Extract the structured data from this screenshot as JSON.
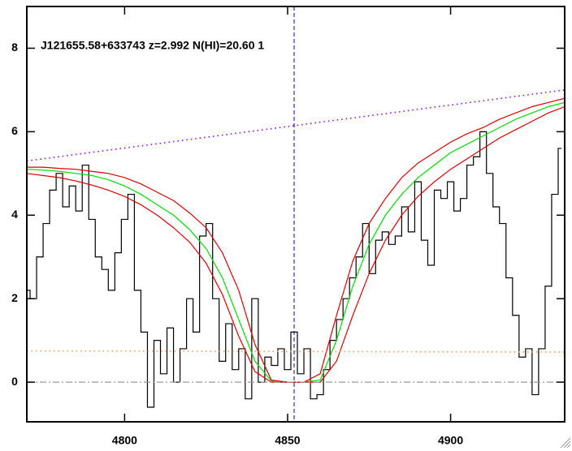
{
  "chart_data": {
    "type": "line",
    "title": "J121655.58+633743 z=2.992 N(HI)=20.60 1",
    "xlim": [
      4770,
      4935
    ],
    "ylim": [
      -0.95,
      9
    ],
    "xticks": [
      4800,
      4850,
      4900
    ],
    "yticks": [
      0,
      2,
      4,
      6,
      8
    ],
    "vline": 4852,
    "vline_color": "#0000cc",
    "series": [
      {
        "name": "flux",
        "color": "#000000",
        "style": "step",
        "x": [
          4770,
          4772,
          4774,
          4776,
          4778,
          4780,
          4782,
          4784,
          4786,
          4788,
          4790,
          4792,
          4794,
          4796,
          4798,
          4800,
          4802,
          4804,
          4806,
          4808,
          4810,
          4812,
          4814,
          4816,
          4818,
          4820,
          4822,
          4824,
          4826,
          4828,
          4830,
          4832,
          4834,
          4836,
          4838,
          4840,
          4842,
          4844,
          4846,
          4848,
          4850,
          4852,
          4854,
          4856,
          4858,
          4860,
          4862,
          4864,
          4866,
          4868,
          4870,
          4872,
          4874,
          4876,
          4878,
          4880,
          4882,
          4884,
          4886,
          4888,
          4890,
          4892,
          4894,
          4896,
          4898,
          4900,
          4902,
          4904,
          4906,
          4908,
          4910,
          4912,
          4914,
          4916,
          4918,
          4920,
          4922,
          4924,
          4926,
          4928,
          4930,
          4932,
          4934
        ],
        "values": [
          2.2,
          2.0,
          3.0,
          3.8,
          4.6,
          5.0,
          4.2,
          4.7,
          4.1,
          5.2,
          3.9,
          3.0,
          2.7,
          2.2,
          3.1,
          3.9,
          4.5,
          2.2,
          1.2,
          -0.6,
          1.0,
          0.2,
          1.3,
          0.0,
          0.8,
          2.0,
          1.2,
          3.5,
          3.8,
          2.0,
          0.5,
          1.4,
          0.3,
          0.8,
          -0.4,
          2.0,
          0.0,
          0.6,
          0.4,
          0.8,
          0.3,
          1.2,
          0.2,
          0.8,
          -0.4,
          -0.3,
          0.3,
          1.0,
          1.5,
          2.0,
          2.5,
          3.0,
          3.8,
          2.6,
          3.4,
          3.6,
          3.3,
          3.5,
          4.2,
          3.6,
          4.8,
          3.4,
          2.8,
          4.6,
          4.4,
          4.8,
          4.1,
          4.4,
          5.2,
          5.4,
          6.0,
          5.0,
          4.2,
          3.8,
          2.5,
          1.6,
          0.6,
          0.8,
          -0.3,
          0.8,
          2.3,
          4.5,
          5.6
        ]
      },
      {
        "name": "fit",
        "color": "#00dd00",
        "style": "solid",
        "x": [
          4770,
          4775,
          4780,
          4785,
          4790,
          4795,
          4800,
          4805,
          4810,
          4815,
          4820,
          4825,
          4830,
          4835,
          4840,
          4845,
          4850,
          4855,
          4860,
          4865,
          4870,
          4875,
          4880,
          4885,
          4890,
          4895,
          4900,
          4905,
          4910,
          4915,
          4920,
          4925,
          4930,
          4935
        ],
        "values": [
          5.1,
          5.08,
          5.05,
          5.0,
          4.95,
          4.85,
          4.7,
          4.5,
          4.25,
          4.0,
          3.65,
          3.2,
          2.5,
          1.5,
          0.5,
          0.03,
          0,
          0,
          0.05,
          1.0,
          2.3,
          3.3,
          4.0,
          4.5,
          4.9,
          5.2,
          5.5,
          5.7,
          5.9,
          6.1,
          6.3,
          6.45,
          6.6,
          6.7
        ]
      },
      {
        "name": "fit-upper",
        "color": "#dd0000",
        "style": "solid",
        "x": [
          4770,
          4775,
          4780,
          4785,
          4790,
          4795,
          4800,
          4805,
          4810,
          4815,
          4820,
          4825,
          4830,
          4835,
          4840,
          4845,
          4850,
          4855,
          4860,
          4865,
          4870,
          4875,
          4880,
          4885,
          4890,
          4895,
          4900,
          4905,
          4910,
          4915,
          4920,
          4925,
          4930,
          4935
        ],
        "values": [
          5.15,
          5.15,
          5.12,
          5.1,
          5.05,
          5.0,
          4.9,
          4.75,
          4.55,
          4.35,
          4.05,
          3.7,
          3.1,
          2.2,
          0.9,
          0.05,
          0,
          0,
          0.2,
          1.6,
          2.9,
          3.8,
          4.4,
          4.9,
          5.25,
          5.5,
          5.75,
          5.95,
          6.1,
          6.3,
          6.45,
          6.6,
          6.7,
          6.8
        ]
      },
      {
        "name": "fit-lower",
        "color": "#dd0000",
        "style": "solid",
        "x": [
          4770,
          4775,
          4780,
          4785,
          4790,
          4795,
          4800,
          4805,
          4810,
          4815,
          4820,
          4825,
          4830,
          4835,
          4840,
          4845,
          4850,
          4855,
          4860,
          4865,
          4870,
          4875,
          4880,
          4885,
          4890,
          4895,
          4900,
          4905,
          4910,
          4915,
          4920,
          4925,
          4930,
          4935
        ],
        "values": [
          5.0,
          4.95,
          4.9,
          4.82,
          4.72,
          4.6,
          4.45,
          4.25,
          4.0,
          3.7,
          3.35,
          2.85,
          2.1,
          1.1,
          0.25,
          0,
          0,
          0,
          0,
          0.5,
          1.6,
          2.6,
          3.4,
          4.0,
          4.45,
          4.8,
          5.1,
          5.35,
          5.6,
          5.85,
          6.05,
          6.25,
          6.45,
          6.6
        ]
      },
      {
        "name": "continuum",
        "color": "#9900ff",
        "style": "dotted",
        "x": [
          4770,
          4935
        ],
        "values": [
          5.3,
          7.0
        ]
      },
      {
        "name": "error",
        "color": "#ff9944",
        "style": "dotted",
        "x": [
          4770,
          4935
        ],
        "values": [
          0.75,
          0.72
        ]
      },
      {
        "name": "zero",
        "color": "#999999",
        "style": "dashdot",
        "x": [
          4770,
          4935
        ],
        "values": [
          0,
          0
        ]
      }
    ]
  }
}
